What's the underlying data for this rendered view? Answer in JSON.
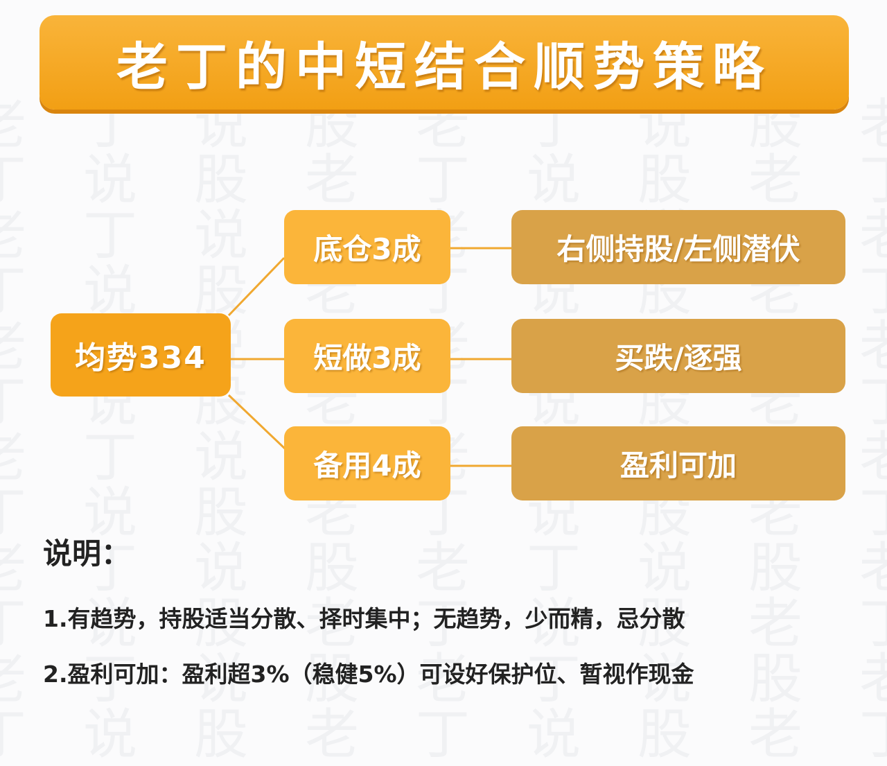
{
  "watermark": "老丁说股",
  "title": "老丁的中短结合顺势策略",
  "root": "均势334",
  "branches": [
    {
      "label": "底仓3成",
      "detail": "右侧持股/左侧潜伏"
    },
    {
      "label": "短做3成",
      "detail": "买跌/逐强"
    },
    {
      "label": "备用4成",
      "detail": "盈利可加"
    }
  ],
  "notes": {
    "heading": "说明：",
    "lines": [
      "1.有趋势，持股适当分散、择时集中；无趋势，少而精，忌分散",
      "2.盈利可加：盈利超3%（稳健5%）可设好保护位、暂视作现金"
    ]
  },
  "colors": {
    "title": "#f5a623",
    "root": "#f5a31a",
    "branch": "#fbb53a",
    "detail": "#d9a248",
    "connector": "#f0a830"
  }
}
